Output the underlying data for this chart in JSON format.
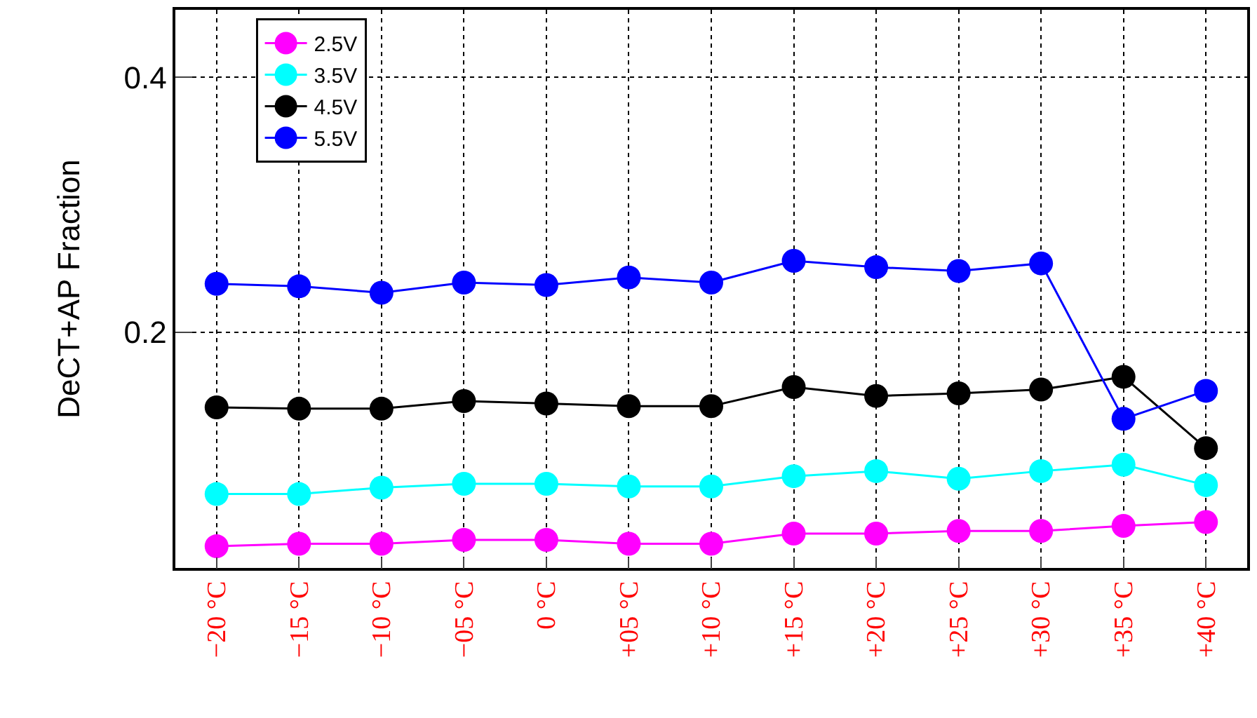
{
  "chart_data": {
    "type": "line",
    "ylabel": "DeCT+AP Fraction",
    "categories": [
      "−20 °C",
      "−15 °C",
      "−10 °C",
      "−05 °C",
      "0 °C",
      "+05 °C",
      "+10 °C",
      "+15 °C",
      "+20 °C",
      "+25 °C",
      "+30 °C",
      "+35 °C",
      "+40 °C"
    ],
    "series": [
      {
        "name": "2.5V",
        "color": "#ff00ff",
        "values": [
          0.032,
          0.034,
          0.034,
          0.037,
          0.037,
          0.034,
          0.034,
          0.042,
          0.042,
          0.044,
          0.044,
          0.048,
          0.051
        ]
      },
      {
        "name": "3.5V",
        "color": "#00ffff",
        "values": [
          0.073,
          0.073,
          0.078,
          0.081,
          0.081,
          0.079,
          0.079,
          0.087,
          0.091,
          0.085,
          0.091,
          0.096,
          0.08
        ]
      },
      {
        "name": "4.5V",
        "color": "#000000",
        "values": [
          0.141,
          0.14,
          0.14,
          0.146,
          0.144,
          0.142,
          0.142,
          0.157,
          0.15,
          0.152,
          0.155,
          0.165,
          0.109
        ]
      },
      {
        "name": "5.5V",
        "color": "#0000ff",
        "values": [
          0.238,
          0.236,
          0.231,
          0.239,
          0.237,
          0.243,
          0.239,
          0.256,
          0.251,
          0.248,
          0.254,
          0.132,
          0.154
        ]
      }
    ],
    "ylim": [
      0.015,
      0.453
    ],
    "yticks": [
      0.2,
      0.4
    ],
    "grid": true,
    "legend": "top left",
    "marker": "circle",
    "line_style": "solid"
  }
}
